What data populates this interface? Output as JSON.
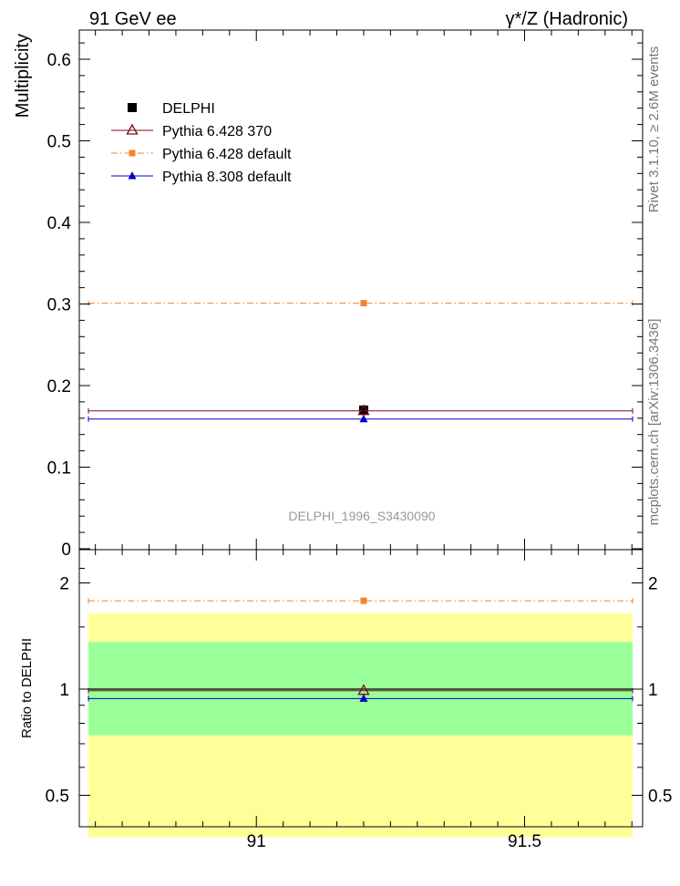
{
  "header": {
    "left": "91 GeV ee",
    "right": "γ*/Z (Hadronic)"
  },
  "side_text": {
    "rivet": "Rivet 3.1.10, ≥ 2.6M events",
    "mcplots": "mcplots.cern.ch [arXiv:1306.3436]"
  },
  "watermark": "DELPHI_1996_S3430090",
  "colors": {
    "delphi": "#000000",
    "p6_370": "#7a0a1e",
    "p6_default": "#f58231",
    "p8_default": "#0000cc",
    "band_inner": "#99ff99",
    "band_outer": "#ffff99"
  },
  "chart_data": [
    {
      "type": "scatter",
      "panel": "main",
      "ylabel": "Multiplicity",
      "xlim": [
        90.67,
        91.72
      ],
      "ylim": [
        0,
        0.64
      ],
      "yticks": [
        0,
        0.1,
        0.2,
        0.3,
        0.4,
        0.5,
        0.6
      ],
      "ytick_labels": [
        "0",
        "0.1",
        "0.2",
        "0.3",
        "0.4",
        "0.5",
        "0.6"
      ],
      "legend_position": "top-left",
      "series": [
        {
          "name": "DELPHI",
          "key": "delphi",
          "marker": "square",
          "x": 91.2,
          "y": 0.17,
          "yerr": 0.004,
          "line": false
        },
        {
          "name": "Pythia 6.428 370",
          "key": "p6_370",
          "marker": "triangle-open",
          "x": 91.2,
          "y": 0.169,
          "line": "solid"
        },
        {
          "name": "Pythia 6.428 default",
          "key": "p6_default",
          "marker": "square-small",
          "x": 91.2,
          "y": 0.301,
          "line": "dashdot"
        },
        {
          "name": "Pythia 8.308 default",
          "key": "p8_default",
          "marker": "triangle",
          "x": 91.2,
          "y": 0.159,
          "line": "solid"
        }
      ]
    },
    {
      "type": "scatter",
      "panel": "ratio",
      "ylabel": "Ratio to DELPHI",
      "xlim": [
        90.67,
        91.72
      ],
      "ylim": [
        0.37,
        2.3
      ],
      "log_y": true,
      "yticks": [
        0.5,
        1,
        2
      ],
      "ytick_labels": [
        "0.5",
        "1",
        "2"
      ],
      "xticks": [
        91,
        91.5
      ],
      "xtick_labels": [
        "91",
        "91.5"
      ],
      "bands": {
        "inner": [
          0.74,
          1.36
        ],
        "outer": [
          0.38,
          1.64
        ]
      },
      "series": [
        {
          "name": "Pythia 6.428 370",
          "key": "p6_370",
          "marker": "triangle-open",
          "x": 91.2,
          "y": 0.99,
          "line": "solid"
        },
        {
          "name": "Pythia 6.428 default",
          "key": "p6_default",
          "marker": "square-small",
          "x": 91.2,
          "y": 1.78,
          "line": "dashdot"
        },
        {
          "name": "Pythia 8.308 default",
          "key": "p8_default",
          "marker": "triangle",
          "x": 91.2,
          "y": 0.94,
          "line": "solid"
        }
      ]
    }
  ]
}
